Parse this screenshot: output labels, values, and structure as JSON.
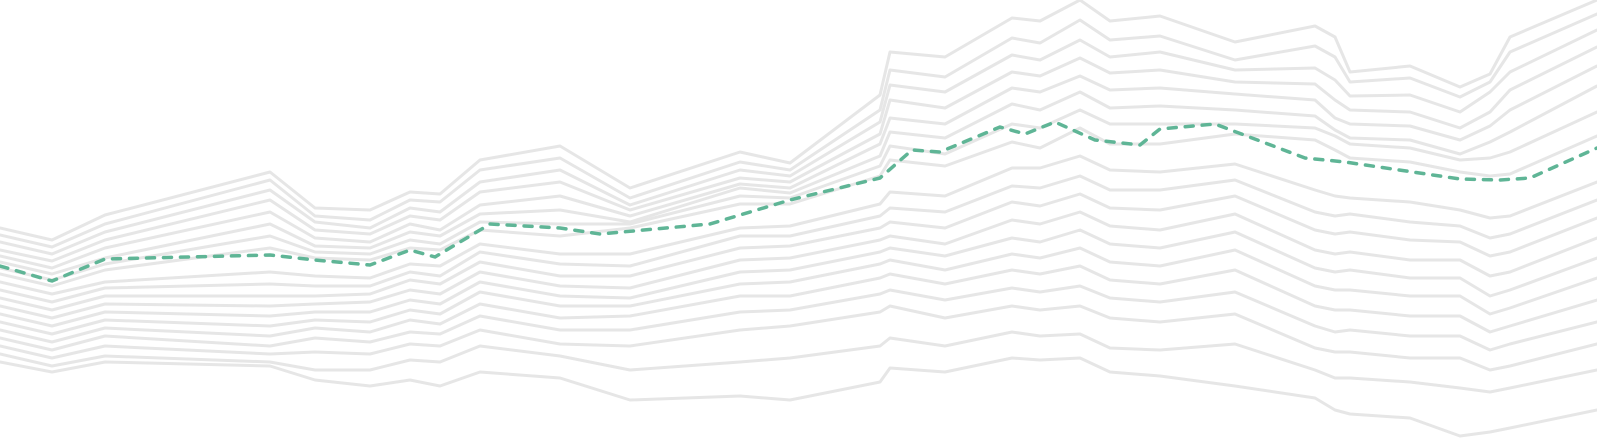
{
  "colors": {
    "background": "#ffffff",
    "line": "#e6e6e6",
    "highlight": "#5fb596"
  },
  "lines": {
    "total": 20,
    "highlighted_index": 8,
    "highlight_style": "dashed"
  }
}
